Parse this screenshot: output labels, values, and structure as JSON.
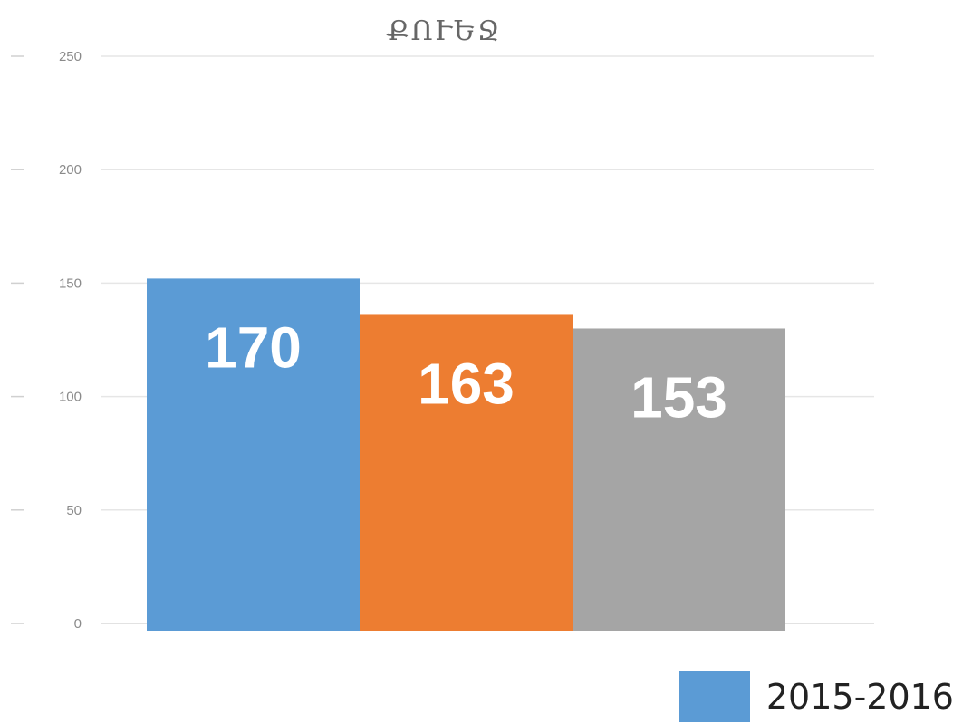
{
  "chart_data": {
    "type": "bar",
    "title": "ՔՈՒԵՋ",
    "xlabel": "",
    "ylabel": "",
    "ylim": [
      0,
      250
    ],
    "yticks": [
      0,
      50,
      100,
      150,
      200,
      250
    ],
    "grid": true,
    "legend_position": "bottom-right",
    "legend": [
      {
        "label": "2015-2016",
        "color": "#5b9bd5"
      }
    ],
    "bars": [
      {
        "value": 152,
        "label": "170",
        "color": "#5b9bd5"
      },
      {
        "value": 136,
        "label": "163",
        "color": "#ed7d31"
      },
      {
        "value": 130,
        "label": "153",
        "color": "#a5a5a5"
      }
    ]
  }
}
